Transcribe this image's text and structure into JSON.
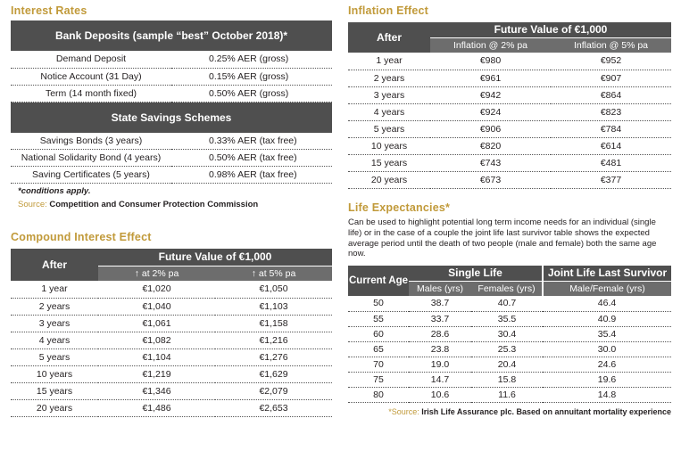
{
  "interest_rates": {
    "title": "Interest Rates",
    "bank_header": "Bank Deposits (sample “best” October 2018)*",
    "bank_rows": [
      {
        "label": "Demand Deposit",
        "value": "0.25% AER (gross)"
      },
      {
        "label": "Notice Account (31 Day)",
        "value": "0.15% AER (gross)"
      },
      {
        "label": "Term (14 month fixed)",
        "value": "0.50% AER (gross)"
      }
    ],
    "state_header": "State Savings Schemes",
    "state_rows": [
      {
        "label": "Savings Bonds (3 years)",
        "value": "0.33% AER (tax free)"
      },
      {
        "label": "National Solidarity Bond (4 years)",
        "value": "0.50% AER (tax free)"
      },
      {
        "label": "Saving Certificates (5 years)",
        "value": "0.98% AER (tax free)"
      }
    ],
    "note": "*conditions apply.",
    "source_label": "Source:",
    "source_text": "Competition and Consumer Protection Commission"
  },
  "compound": {
    "title": "Compound Interest Effect",
    "col_after": "After",
    "col_group": "Future Value of €1,000",
    "col_a": "↑ at 2% pa",
    "col_b": "↑ at 5% pa",
    "rows": [
      {
        "after": "1 year",
        "a": "€1,020",
        "b": "€1,050"
      },
      {
        "after": "2 years",
        "a": "€1,040",
        "b": "€1,103"
      },
      {
        "after": "3 years",
        "a": "€1,061",
        "b": "€1,158"
      },
      {
        "after": "4 years",
        "a": "€1,082",
        "b": "€1,216"
      },
      {
        "after": "5 years",
        "a": "€1,104",
        "b": "€1,276"
      },
      {
        "after": "10 years",
        "a": "€1,219",
        "b": "€1,629"
      },
      {
        "after": "15 years",
        "a": "€1,346",
        "b": "€2,079"
      },
      {
        "after": "20 years",
        "a": "€1,486",
        "b": "€2,653"
      }
    ]
  },
  "inflation": {
    "title": "Inflation Effect",
    "col_after": "After",
    "col_group": "Future Value of €1,000",
    "col_a": "Inflation @ 2% pa",
    "col_b": "Inflation @ 5% pa",
    "rows": [
      {
        "after": "1 year",
        "a": "€980",
        "b": "€952"
      },
      {
        "after": "2 years",
        "a": "€961",
        "b": "€907"
      },
      {
        "after": "3 years",
        "a": "€942",
        "b": "€864"
      },
      {
        "after": "4 years",
        "a": "€924",
        "b": "€823"
      },
      {
        "after": "5 years",
        "a": "€906",
        "b": "€784"
      },
      {
        "after": "10 years",
        "a": "€820",
        "b": "€614"
      },
      {
        "after": "15 years",
        "a": "€743",
        "b": "€481"
      },
      {
        "after": "20 years",
        "a": "€673",
        "b": "€377"
      }
    ]
  },
  "life": {
    "title": "Life Expectancies*",
    "description": "Can be used to highlight potential long term income needs for an individual (single life) or in the case of a couple the joint life last survivor table shows the expected average period until the death of two people (male and female) both the same age now.",
    "col_age": "Current Age",
    "col_single": "Single Life",
    "col_joint": "Joint Life Last Survivor",
    "col_males": "Males (yrs)",
    "col_females": "Females (yrs)",
    "col_mf": "Male/Female (yrs)",
    "rows": [
      {
        "age": "50",
        "m": "38.7",
        "f": "40.7",
        "j": "46.4"
      },
      {
        "age": "55",
        "m": "33.7",
        "f": "35.5",
        "j": "40.9"
      },
      {
        "age": "60",
        "m": "28.6",
        "f": "30.4",
        "j": "35.4"
      },
      {
        "age": "65",
        "m": "23.8",
        "f": "25.3",
        "j": "30.0"
      },
      {
        "age": "70",
        "m": "19.0",
        "f": "20.4",
        "j": "24.6"
      },
      {
        "age": "75",
        "m": "14.7",
        "f": "15.8",
        "j": "19.6"
      },
      {
        "age": "80",
        "m": "10.6",
        "f": "11.6",
        "j": "14.8"
      }
    ],
    "source_label": "*Source:",
    "source_text": "Irish Life Assurance plc. Based on annuitant mortality experience"
  }
}
